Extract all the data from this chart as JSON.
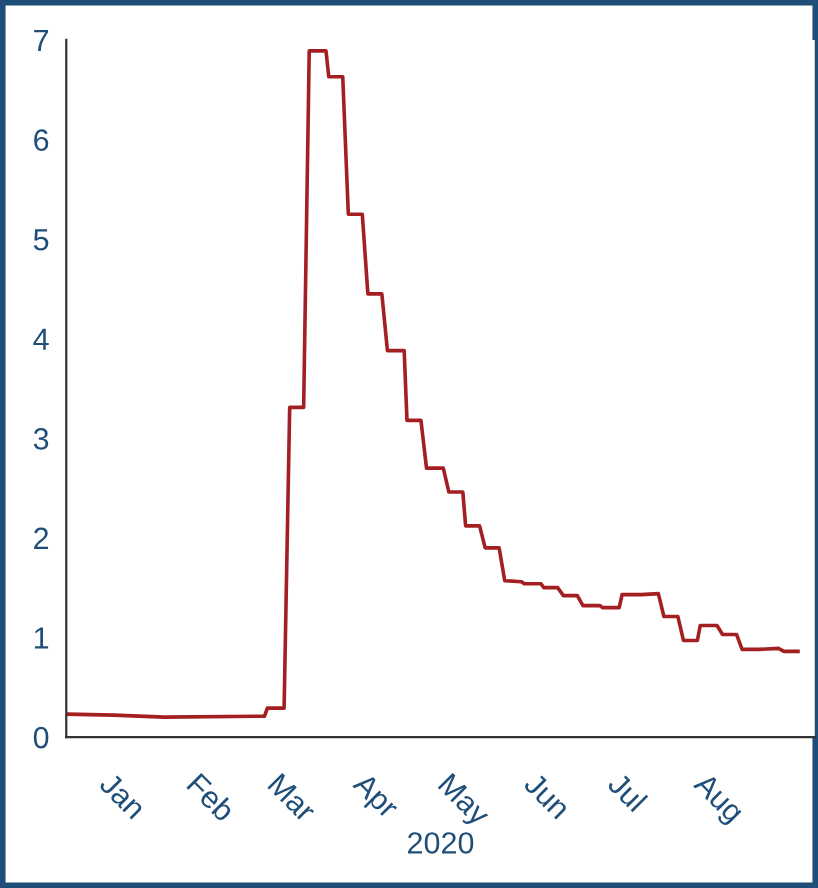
{
  "chart_data": {
    "type": "line",
    "xlabel": "2020",
    "x": [
      "2019-12-15",
      "2020-01-01",
      "2020-01-19",
      "2020-02-24",
      "2020-02-25",
      "2020-03-02",
      "2020-03-04",
      "2020-03-09",
      "2020-03-11",
      "2020-03-17",
      "2020-03-18",
      "2020-03-23",
      "2020-03-25",
      "2020-03-30",
      "2020-04-01",
      "2020-04-06",
      "2020-04-08",
      "2020-04-14",
      "2020-04-15",
      "2020-04-20",
      "2020-04-22",
      "2020-04-28",
      "2020-04-30",
      "2020-05-05",
      "2020-05-06",
      "2020-05-11",
      "2020-05-13",
      "2020-05-18",
      "2020-05-20",
      "2020-05-26",
      "2020-05-27",
      "2020-06-02",
      "2020-06-03",
      "2020-06-08",
      "2020-06-10",
      "2020-06-15",
      "2020-06-17",
      "2020-06-23",
      "2020-06-24",
      "2020-06-30",
      "2020-07-01",
      "2020-07-08",
      "2020-07-14",
      "2020-07-16",
      "2020-07-21",
      "2020-07-23",
      "2020-07-28",
      "2020-07-29",
      "2020-08-04",
      "2020-08-06",
      "2020-08-11",
      "2020-08-13",
      "2020-08-19",
      "2020-08-26",
      "2020-08-28",
      "2020-09-02"
    ],
    "series": [
      {
        "color": "#a31f22",
        "values": [
          0.23,
          0.22,
          0.2,
          0.21,
          0.29,
          0.29,
          3.31,
          3.31,
          6.89,
          6.89,
          6.63,
          6.63,
          5.25,
          5.25,
          4.45,
          4.45,
          3.88,
          3.88,
          3.18,
          3.18,
          2.7,
          2.7,
          2.46,
          2.46,
          2.12,
          2.12,
          1.9,
          1.9,
          1.57,
          1.56,
          1.54,
          1.54,
          1.5,
          1.5,
          1.42,
          1.42,
          1.32,
          1.32,
          1.3,
          1.3,
          1.43,
          1.43,
          1.44,
          1.21,
          1.21,
          0.97,
          0.97,
          1.12,
          1.12,
          1.03,
          1.03,
          0.88,
          0.88,
          0.89,
          0.86,
          0.86
        ]
      }
    ],
    "xlim": [
      "2019-12-15",
      "2020-09-08"
    ],
    "xticks": [
      {
        "value": "2020-01-01",
        "label": "Jan"
      },
      {
        "value": "2020-02-01",
        "label": "Feb"
      },
      {
        "value": "2020-03-01",
        "label": "Mar"
      },
      {
        "value": "2020-04-01",
        "label": "Apr"
      },
      {
        "value": "2020-05-01",
        "label": "May"
      },
      {
        "value": "2020-06-01",
        "label": "Jun"
      },
      {
        "value": "2020-07-01",
        "label": "Jul"
      },
      {
        "value": "2020-08-01",
        "label": "Aug"
      }
    ],
    "ylim": [
      0,
      7
    ],
    "yticks": [
      0,
      1,
      2,
      3,
      4,
      5,
      6,
      7
    ],
    "grid": false,
    "legend": false,
    "marker": "none",
    "line_style": "solid"
  }
}
